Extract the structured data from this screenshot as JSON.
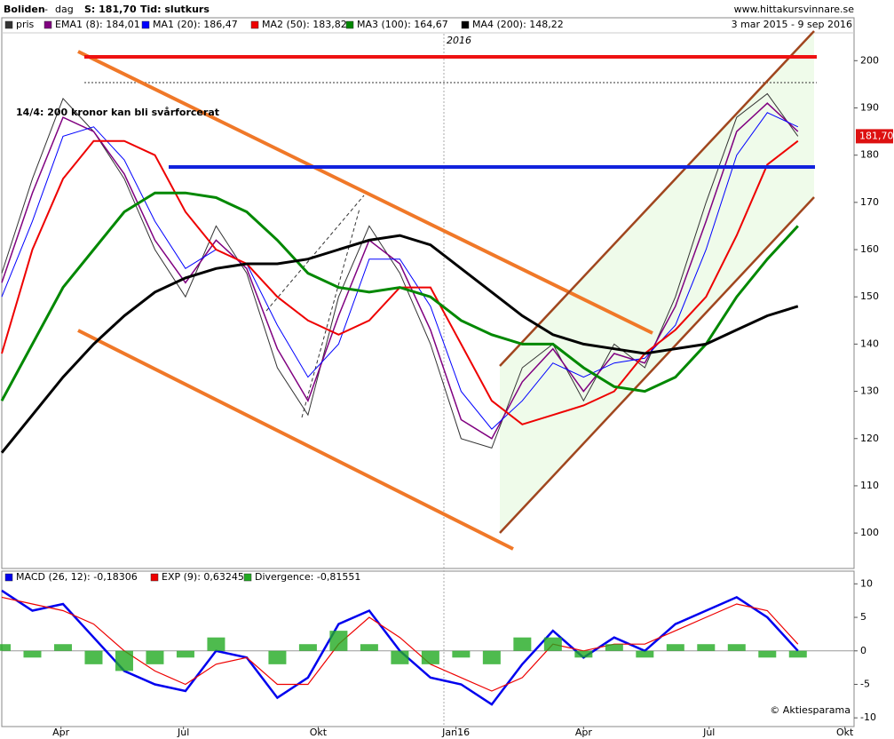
{
  "header": {
    "title": "Boliden",
    "sep": "-",
    "period_kind": "dag",
    "s": "S: 181,70",
    "tid": "Tid: slutkurs",
    "site": "www.hittakursvinnare.se",
    "range": "3 mar 2015 - 9 sep 2016"
  },
  "chart_data": [
    {
      "type": "line",
      "annotations": [
        "14/4: 200 kronor kan bli svårforcerat",
        "2016"
      ],
      "last_label": "181,70",
      "x": [
        0,
        3,
        6,
        9,
        12,
        15,
        18,
        21,
        24,
        27,
        30,
        33,
        36,
        39,
        42,
        45,
        48,
        51,
        54,
        57,
        60,
        63,
        66,
        69,
        72,
        75,
        78
      ],
      "xlim": [
        0,
        83.5
      ],
      "ylim": [
        92.5,
        205.7
      ],
      "yticks": [
        100,
        110,
        120,
        130,
        140,
        150,
        160,
        170,
        180,
        190,
        200
      ],
      "grid": false,
      "series": [
        {
          "name": "pris",
          "color": "#333333",
          "values": [
            155,
            175,
            192,
            185,
            175,
            160,
            150,
            165,
            155,
            135,
            125,
            150,
            165,
            155,
            140,
            120,
            118,
            135,
            140,
            128,
            140,
            135,
            150,
            170,
            188,
            193,
            184
          ]
        },
        {
          "name": "EMA1 (8): 184,01",
          "color": "#800080",
          "values": [
            153,
            172,
            188,
            185,
            176,
            162,
            153,
            162,
            156,
            139,
            128,
            146,
            162,
            157,
            143,
            124,
            120,
            132,
            139,
            130,
            138,
            136,
            148,
            166,
            185,
            191,
            185
          ]
        },
        {
          "name": "MA1 (20): 186,47",
          "color": "#0000ff",
          "values": [
            150,
            166,
            184,
            186,
            179,
            166,
            156,
            160,
            157,
            144,
            133,
            140,
            158,
            158,
            148,
            130,
            122,
            128,
            136,
            133,
            136,
            137,
            144,
            160,
            180,
            189,
            186
          ]
        },
        {
          "name": "MA2 (50): 183,82",
          "color": "#ee0000",
          "values": [
            138,
            160,
            175,
            183,
            183,
            180,
            168,
            160,
            157,
            150,
            145,
            142,
            145,
            152,
            152,
            140,
            128,
            123,
            125,
            127,
            130,
            138,
            143,
            150,
            163,
            178,
            183
          ]
        },
        {
          "name": "MA3 (100): 164,67",
          "color": "#008800",
          "values": [
            128,
            140,
            152,
            160,
            168,
            172,
            172,
            171,
            168,
            162,
            155,
            152,
            151,
            152,
            150,
            145,
            142,
            140,
            140,
            135,
            131,
            130,
            133,
            140,
            150,
            158,
            165
          ]
        },
        {
          "name": "MA4 (200): 148,22",
          "color": "#000000",
          "values": [
            117,
            125,
            133,
            140,
            146,
            151,
            154,
            156,
            157,
            157,
            158,
            160,
            162,
            163,
            161,
            156,
            151,
            146,
            142,
            140,
            139,
            138,
            139,
            140,
            143,
            146,
            148
          ]
        }
      ]
    },
    {
      "type": "line",
      "watermark": "© Aktiesparama",
      "x": [
        0,
        3,
        6,
        9,
        12,
        15,
        18,
        21,
        24,
        27,
        30,
        33,
        36,
        39,
        42,
        45,
        48,
        51,
        54,
        57,
        60,
        63,
        66,
        69,
        72,
        75,
        78
      ],
      "xlim": [
        0,
        83.5
      ],
      "xticks": [
        {
          "value": 5.8,
          "label": "Apr"
        },
        {
          "value": 17.8,
          "label": "Jul"
        },
        {
          "value": 31,
          "label": "Okt"
        },
        {
          "value": 44.5,
          "label": "Jan16"
        },
        {
          "value": 57,
          "label": "Apr"
        },
        {
          "value": 69.3,
          "label": "Jul"
        },
        {
          "value": 82.6,
          "label": "Okt"
        }
      ],
      "ylim": [
        -11.3,
        11.9
      ],
      "yticks": [
        -10,
        -5,
        0,
        5,
        10
      ],
      "series": [
        {
          "name": "MACD (26, 12): -0,18306",
          "color": "#0000ee",
          "values": [
            9,
            6,
            7,
            2,
            -3,
            -5,
            -6,
            0,
            -1,
            -7,
            -4,
            4,
            6,
            0,
            -4,
            -5,
            -8,
            -2,
            3,
            -1,
            2,
            0,
            4,
            6,
            8,
            5,
            0
          ]
        },
        {
          "name": "EXP (9): 0,63245",
          "color": "#ee0000",
          "values": [
            8,
            7,
            6,
            4,
            0,
            -3,
            -5,
            -2,
            -1,
            -5,
            -5,
            1,
            5,
            2,
            -2,
            -4,
            -6,
            -4,
            1,
            0,
            1,
            1,
            3,
            5,
            7,
            6,
            1
          ]
        },
        {
          "name": "Divergence: -0,81551",
          "color": "#22aa22",
          "style": "bar",
          "values": [
            1,
            -1,
            1,
            -2,
            -3,
            -2,
            -1,
            2,
            0,
            -2,
            1,
            3,
            1,
            -2,
            -2,
            -1,
            -2,
            2,
            2,
            -1,
            1,
            -1,
            1,
            1,
            1,
            -1,
            -1
          ]
        }
      ]
    }
  ]
}
